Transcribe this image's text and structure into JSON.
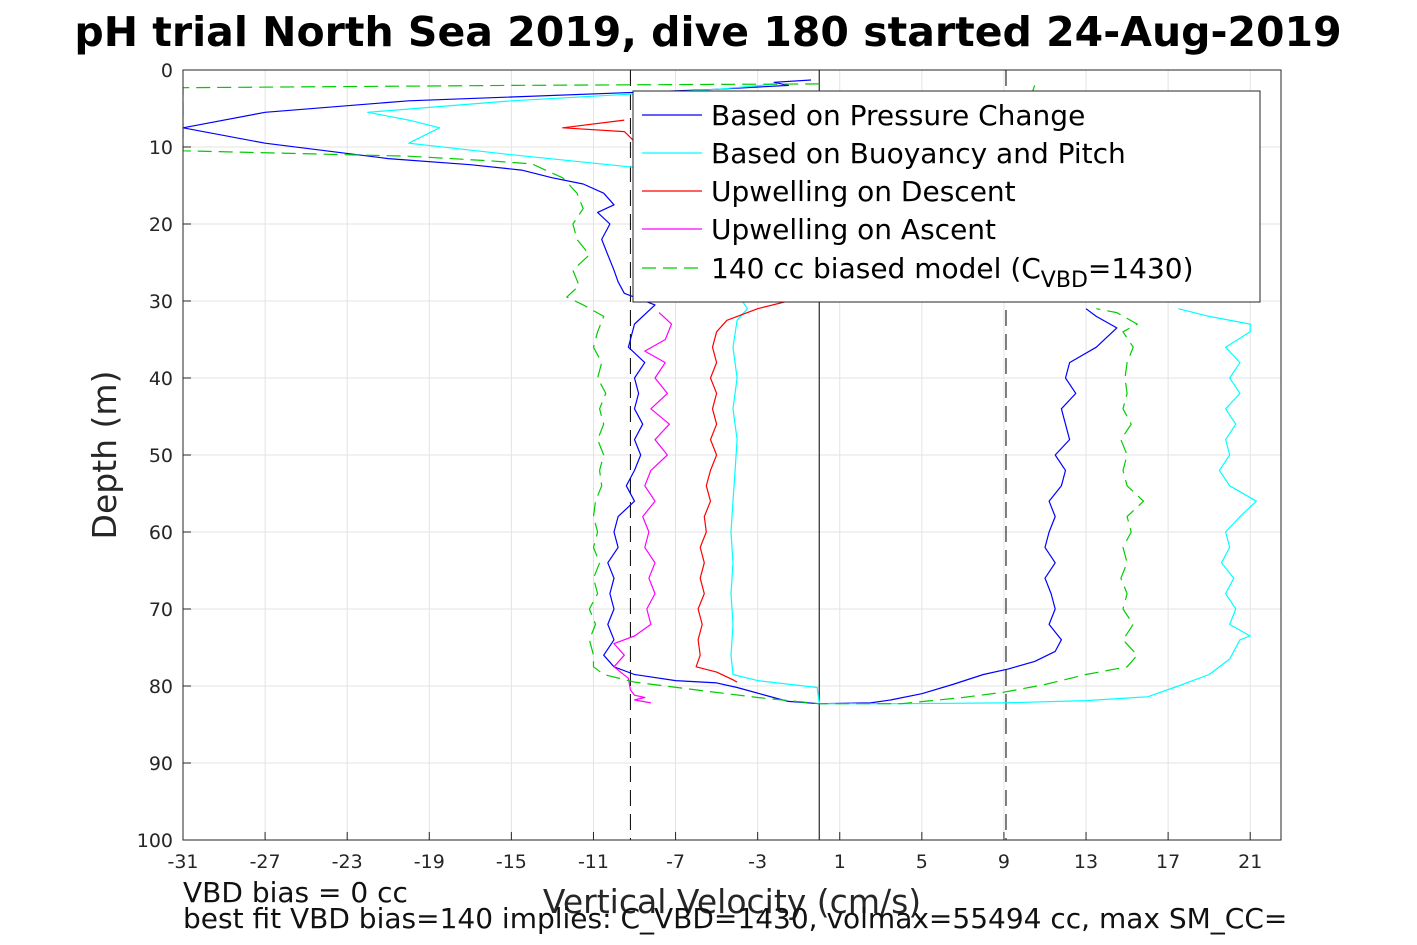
{
  "chart_data": {
    "type": "line",
    "title": "pH trial North Sea 2019, dive 180 started 24-Aug-2019",
    "xlabel": "Vertical Velocity (cm/s)",
    "ylabel": "Depth (m)",
    "xlim": [
      -31,
      22.5
    ],
    "ylim": [
      0,
      100
    ],
    "y_reversed": true,
    "grid": true,
    "legend_position": "top-right",
    "xticks": [
      -31,
      -27,
      -23,
      -19,
      -15,
      -11,
      -7,
      -3,
      1,
      5,
      9,
      13,
      17,
      21
    ],
    "yticks": [
      0,
      10,
      20,
      30,
      40,
      50,
      60,
      70,
      80,
      90,
      100
    ],
    "vertical_lines": [
      {
        "x": -9.2,
        "style": "dashed",
        "color": "#000000"
      },
      {
        "x": 0,
        "style": "solid",
        "color": "#000000"
      },
      {
        "x": 9.1,
        "style": "dashed",
        "color": "#000000"
      }
    ],
    "series": [
      {
        "name": "Based on Pressure Change",
        "color": "#0000ff",
        "style": "solid",
        "points": [
          [
            -0.4,
            1.3
          ],
          [
            -2.2,
            1.6
          ],
          [
            -1.5,
            2.0
          ],
          [
            -5.0,
            2.5
          ],
          [
            -20.0,
            4.0
          ],
          [
            -27.0,
            5.5
          ],
          [
            -31.0,
            7.5
          ],
          [
            -27.0,
            9.5
          ],
          [
            -21.0,
            11.5
          ],
          [
            -17.0,
            12.3
          ],
          [
            -14.5,
            13.0
          ],
          [
            -13.0,
            14.0
          ],
          [
            -11.5,
            14.8
          ],
          [
            -10.5,
            16.0
          ],
          [
            -10.0,
            17.5
          ],
          [
            -10.8,
            18.5
          ],
          [
            -10.2,
            20.0
          ],
          [
            -10.6,
            22.0
          ],
          [
            -10.3,
            24.0
          ],
          [
            -10.0,
            26.0
          ],
          [
            -9.8,
            27.5
          ],
          [
            -9.5,
            29.0
          ],
          [
            -8.0,
            30.5
          ],
          [
            -9.0,
            33.0
          ],
          [
            -9.3,
            36.0
          ],
          [
            -8.5,
            38.0
          ],
          [
            -9.0,
            40.0
          ],
          [
            -8.8,
            42.0
          ],
          [
            -9.0,
            44.0
          ],
          [
            -8.6,
            46.0
          ],
          [
            -9.0,
            48.0
          ],
          [
            -8.7,
            50.0
          ],
          [
            -9.0,
            52.0
          ],
          [
            -9.4,
            54.0
          ],
          [
            -9.0,
            56.0
          ],
          [
            -9.8,
            58.0
          ],
          [
            -10.0,
            60.0
          ],
          [
            -9.8,
            62.0
          ],
          [
            -10.3,
            64.0
          ],
          [
            -10.0,
            66.0
          ],
          [
            -10.2,
            68.0
          ],
          [
            -10.0,
            70.0
          ],
          [
            -10.3,
            72.0
          ],
          [
            -10.0,
            74.0
          ],
          [
            -10.5,
            76.0
          ],
          [
            -10.0,
            77.5
          ],
          [
            -9.0,
            78.5
          ],
          [
            -7.0,
            79.3
          ],
          [
            -5.0,
            79.6
          ],
          [
            -4.0,
            80.2
          ],
          [
            -2.5,
            81.3
          ],
          [
            -1.5,
            82.0
          ],
          [
            0.0,
            82.3
          ],
          [
            2.5,
            82.2
          ],
          [
            3.5,
            81.8
          ],
          [
            5.0,
            81.0
          ],
          [
            6.5,
            79.8
          ],
          [
            8.0,
            78.5
          ],
          [
            9.2,
            77.8
          ],
          [
            10.5,
            76.8
          ],
          [
            11.5,
            75.5
          ],
          [
            11.8,
            74.0
          ],
          [
            11.2,
            72.0
          ],
          [
            11.5,
            70.0
          ],
          [
            11.3,
            68.0
          ],
          [
            11.0,
            66.0
          ],
          [
            11.5,
            64.0
          ],
          [
            11.0,
            62.0
          ],
          [
            11.2,
            60.0
          ],
          [
            11.5,
            58.0
          ],
          [
            11.2,
            56.0
          ],
          [
            11.8,
            54.0
          ],
          [
            12.0,
            52.0
          ],
          [
            11.5,
            50.0
          ],
          [
            12.2,
            48.0
          ],
          [
            12.0,
            46.0
          ],
          [
            11.8,
            44.0
          ],
          [
            12.5,
            42.0
          ],
          [
            12.0,
            40.0
          ],
          [
            12.2,
            38.0
          ],
          [
            13.5,
            36.0
          ],
          [
            14.5,
            33.5
          ],
          [
            13.5,
            32.0
          ],
          [
            13.0,
            31.0
          ]
        ]
      },
      {
        "name": "Based on Buoyancy and Pitch",
        "color": "#00ffff",
        "style": "solid",
        "points": [
          [
            -2.0,
            1.8
          ],
          [
            -5.0,
            2.5
          ],
          [
            -15.0,
            4.0
          ],
          [
            -22.0,
            5.5
          ],
          [
            -20.0,
            6.5
          ],
          [
            -18.5,
            7.5
          ],
          [
            -20.0,
            9.5
          ],
          [
            -15.0,
            11.0
          ],
          [
            -9.5,
            12.5
          ],
          [
            -8.0,
            13.0
          ],
          [
            -3.5,
            31.0
          ],
          [
            -4.0,
            32.5
          ],
          [
            -4.2,
            36.0
          ],
          [
            -4.0,
            40.0
          ],
          [
            -4.2,
            44.0
          ],
          [
            -4.0,
            48.0
          ],
          [
            -4.1,
            52.0
          ],
          [
            -4.2,
            56.0
          ],
          [
            -4.3,
            60.0
          ],
          [
            -4.2,
            64.0
          ],
          [
            -4.3,
            68.0
          ],
          [
            -4.2,
            72.0
          ],
          [
            -4.3,
            76.0
          ],
          [
            -4.2,
            78.5
          ],
          [
            -3.0,
            79.3
          ],
          [
            -0.1,
            80.2
          ],
          [
            0.0,
            82.3
          ],
          [
            4.0,
            82.3
          ],
          [
            9.0,
            82.2
          ],
          [
            13.0,
            81.9
          ],
          [
            16.0,
            81.4
          ],
          [
            17.5,
            80.0
          ],
          [
            19.0,
            78.5
          ],
          [
            20.0,
            76.5
          ],
          [
            20.5,
            74.0
          ],
          [
            21.0,
            73.5
          ],
          [
            20.0,
            72.0
          ],
          [
            20.3,
            70.0
          ],
          [
            19.8,
            68.0
          ],
          [
            20.2,
            66.0
          ],
          [
            19.6,
            64.0
          ],
          [
            20.0,
            62.0
          ],
          [
            19.8,
            60.0
          ],
          [
            20.5,
            58.0
          ],
          [
            21.3,
            56.0
          ],
          [
            20.0,
            54.0
          ],
          [
            19.5,
            52.0
          ],
          [
            20.0,
            50.0
          ],
          [
            19.8,
            48.0
          ],
          [
            20.3,
            46.0
          ],
          [
            19.8,
            44.0
          ],
          [
            20.5,
            42.0
          ],
          [
            20.0,
            40.0
          ],
          [
            20.5,
            38.0
          ],
          [
            19.8,
            36.0
          ],
          [
            21.0,
            34.0
          ],
          [
            21.0,
            33.0
          ],
          [
            19.0,
            32.0
          ],
          [
            17.5,
            31.0
          ]
        ]
      },
      {
        "name": "Upwelling on Descent",
        "color": "#ff0000",
        "style": "solid",
        "points": [
          [
            -9.5,
            6.5
          ],
          [
            -12.5,
            7.5
          ],
          [
            -9.5,
            8.0
          ],
          [
            -9.3,
            8.5
          ],
          [
            -1.5,
            30.0
          ],
          [
            -3.0,
            31.0
          ],
          [
            -4.5,
            32.5
          ],
          [
            -5.0,
            34.0
          ],
          [
            -5.2,
            36.0
          ],
          [
            -5.0,
            38.0
          ],
          [
            -5.3,
            40.0
          ],
          [
            -5.0,
            42.0
          ],
          [
            -5.2,
            44.0
          ],
          [
            -5.0,
            46.0
          ],
          [
            -5.3,
            48.0
          ],
          [
            -5.0,
            50.0
          ],
          [
            -5.3,
            52.0
          ],
          [
            -5.5,
            54.0
          ],
          [
            -5.3,
            56.0
          ],
          [
            -5.6,
            58.0
          ],
          [
            -5.5,
            60.0
          ],
          [
            -5.8,
            62.0
          ],
          [
            -5.6,
            64.0
          ],
          [
            -5.8,
            66.0
          ],
          [
            -5.6,
            68.0
          ],
          [
            -5.9,
            70.0
          ],
          [
            -5.7,
            72.0
          ],
          [
            -5.9,
            74.0
          ],
          [
            -5.8,
            76.0
          ],
          [
            -6.0,
            77.5
          ],
          [
            -5.0,
            78.2
          ],
          [
            -4.2,
            79.2
          ],
          [
            -4.0,
            79.5
          ]
        ]
      },
      {
        "name": "Upwelling on Ascent",
        "color": "#ff00ff",
        "style": "solid",
        "points": [
          [
            -7.8,
            31.5
          ],
          [
            -7.2,
            33.0
          ],
          [
            -7.5,
            35.0
          ],
          [
            -8.5,
            36.5
          ],
          [
            -7.5,
            38.0
          ],
          [
            -8.0,
            40.0
          ],
          [
            -7.4,
            42.0
          ],
          [
            -8.2,
            44.0
          ],
          [
            -7.3,
            46.0
          ],
          [
            -8.0,
            48.0
          ],
          [
            -7.4,
            50.0
          ],
          [
            -8.2,
            52.0
          ],
          [
            -8.5,
            54.0
          ],
          [
            -8.0,
            56.0
          ],
          [
            -8.6,
            58.0
          ],
          [
            -8.3,
            60.0
          ],
          [
            -8.5,
            62.0
          ],
          [
            -8.0,
            64.0
          ],
          [
            -8.3,
            66.0
          ],
          [
            -8.0,
            68.0
          ],
          [
            -8.4,
            70.0
          ],
          [
            -8.2,
            72.0
          ],
          [
            -9.0,
            73.5
          ],
          [
            -10.0,
            74.5
          ],
          [
            -9.5,
            76.0
          ],
          [
            -10.0,
            77.5
          ],
          [
            -9.3,
            79.0
          ],
          [
            -9.2,
            80.5
          ],
          [
            -9.0,
            81.2
          ],
          [
            -8.5,
            81.5
          ],
          [
            -9.0,
            81.8
          ],
          [
            -8.2,
            82.2
          ]
        ]
      },
      {
        "name": "140 cc biased model (C_VBD=1430)",
        "color": "#00cc00",
        "style": "dashed",
        "points": [
          [
            0.0,
            1.8
          ],
          [
            -15.0,
            2.0
          ],
          [
            -31.0,
            2.3
          ],
          [
            -31.0,
            2.5
          ],
          [
            -31.0,
            10.5
          ],
          [
            -20.0,
            11.2
          ],
          [
            -16.0,
            11.8
          ],
          [
            -14.0,
            12.2
          ],
          [
            -12.5,
            14.0
          ],
          [
            -11.8,
            16.0
          ],
          [
            -11.5,
            18.0
          ],
          [
            -12.0,
            20.0
          ],
          [
            -11.8,
            22.0
          ],
          [
            -11.2,
            24.0
          ],
          [
            -12.0,
            26.0
          ],
          [
            -11.7,
            28.0
          ],
          [
            -12.3,
            29.5
          ],
          [
            -11.5,
            30.5
          ],
          [
            -10.5,
            32.0
          ],
          [
            -10.8,
            34.0
          ],
          [
            -11.0,
            36.0
          ],
          [
            -10.6,
            38.0
          ],
          [
            -10.8,
            40.0
          ],
          [
            -10.4,
            42.0
          ],
          [
            -10.7,
            44.0
          ],
          [
            -10.5,
            46.0
          ],
          [
            -10.8,
            48.0
          ],
          [
            -10.5,
            50.0
          ],
          [
            -10.7,
            52.0
          ],
          [
            -10.6,
            54.0
          ],
          [
            -10.9,
            56.0
          ],
          [
            -11.0,
            58.0
          ],
          [
            -10.8,
            60.0
          ],
          [
            -11.0,
            62.0
          ],
          [
            -10.7,
            64.0
          ],
          [
            -11.0,
            66.0
          ],
          [
            -10.8,
            68.0
          ],
          [
            -11.2,
            70.0
          ],
          [
            -10.9,
            72.0
          ],
          [
            -11.2,
            74.0
          ],
          [
            -11.0,
            76.0
          ],
          [
            -11.0,
            77.5
          ],
          [
            -10.5,
            78.5
          ],
          [
            -9.0,
            79.5
          ],
          [
            -6.0,
            80.5
          ],
          [
            -3.0,
            81.5
          ],
          [
            0.0,
            82.3
          ],
          [
            4.0,
            82.3
          ],
          [
            7.0,
            81.5
          ],
          [
            9.0,
            80.8
          ],
          [
            11.0,
            79.8
          ],
          [
            13.0,
            78.5
          ],
          [
            15.0,
            77.5
          ],
          [
            15.5,
            76.0
          ],
          [
            14.8,
            74.0
          ],
          [
            15.3,
            72.0
          ],
          [
            14.8,
            70.0
          ],
          [
            15.0,
            68.0
          ],
          [
            14.7,
            66.0
          ],
          [
            15.0,
            64.0
          ],
          [
            14.8,
            62.0
          ],
          [
            15.2,
            60.0
          ],
          [
            15.0,
            58.0
          ],
          [
            15.8,
            56.0
          ],
          [
            15.0,
            54.0
          ],
          [
            14.8,
            52.0
          ],
          [
            15.0,
            50.0
          ],
          [
            14.7,
            48.0
          ],
          [
            15.2,
            46.0
          ],
          [
            14.8,
            44.0
          ],
          [
            15.0,
            42.0
          ],
          [
            14.9,
            40.0
          ],
          [
            15.0,
            38.0
          ],
          [
            15.3,
            36.0
          ],
          [
            14.8,
            34.0
          ],
          [
            15.5,
            33.0
          ],
          [
            14.5,
            31.5
          ],
          [
            13.5,
            31.0
          ]
        ],
        "extra_points": [
          [
            10.5,
            2.0
          ],
          [
            10.3,
            3.5
          ]
        ]
      }
    ],
    "legend": {
      "entries": [
        "Based on Pressure Change",
        "Based on Buoyancy and Pitch",
        "Upwelling on Descent",
        "Upwelling on Ascent"
      ],
      "model_entry": {
        "prefix": "140 cc biased model (C",
        "subscript": "VBD",
        "suffix": "=1430)"
      }
    },
    "annotations": [
      "VBD bias = 0 cc",
      "best fit VBD bias=140 implies: C_VBD=1430, volmax=55494 cc, max SM_CC="
    ]
  }
}
